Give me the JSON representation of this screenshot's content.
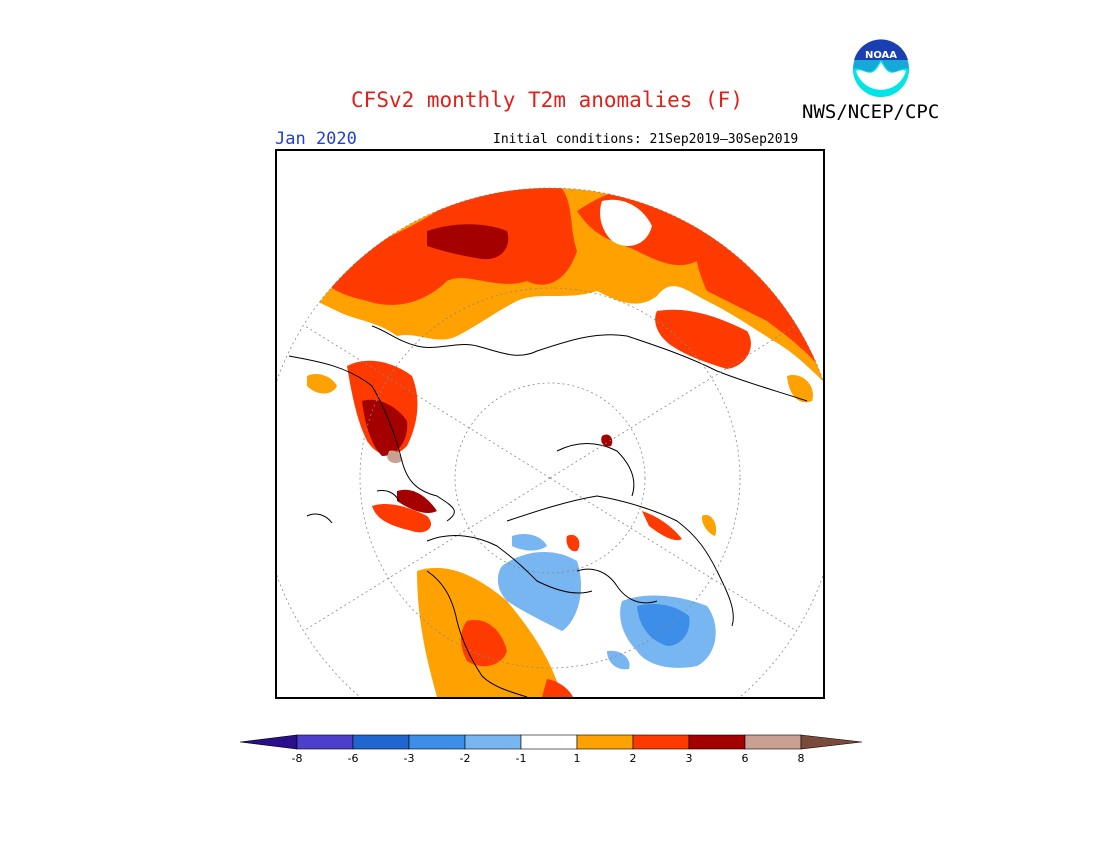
{
  "header": {
    "title": "CFSv2 monthly T2m anomalies (F)",
    "agency": "NWS/NCEP/CPC",
    "month": "Jan 2020",
    "initial_conditions": "Initial conditions: 21Sep2019—30Sep2019"
  },
  "logo": {
    "text": "NOAA",
    "icon": "noaa-logo-icon"
  },
  "colorbar": {
    "tick_labels": [
      "-8",
      "-6",
      "-3",
      "-2",
      "-1",
      "1",
      "2",
      "3",
      "6",
      "8"
    ],
    "colors": [
      "#2a0f8c",
      "#4b3fcc",
      "#1f66d0",
      "#3c8ee8",
      "#78b6f2",
      "#ffffff",
      "#ffa100",
      "#ff3a00",
      "#a50000",
      "#c9a193",
      "#7a4a3a"
    ]
  },
  "map": {
    "projection": "north-polar-stereographic",
    "legend_colors": {
      "warm_1_2": "#ffa100",
      "warm_2_3": "#ff3a00",
      "warm_3_6": "#a50000",
      "warm_6_8": "#c9a193",
      "cold_1_2": "#78b6f2",
      "cold_2_3": "#3c8ee8"
    }
  }
}
